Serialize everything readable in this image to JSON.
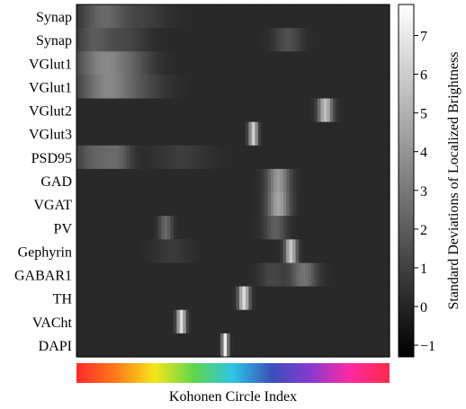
{
  "chart_data": {
    "type": "heatmap",
    "rows": [
      "Synap",
      "Synap",
      "VGlut1",
      "VGlut1",
      "VGlut2",
      "VGlut3",
      "PSD95",
      "GAD",
      "VGAT",
      "PV",
      "Gephyrin",
      "GABAR1",
      "TH",
      "VACht",
      "DAPI"
    ],
    "xlabel": "Kohonen Circle Index",
    "colorbar": {
      "label": "Standard Deviations of Localized Brightness",
      "range": [
        -1.3,
        7.8
      ],
      "ticks": [
        7,
        6,
        5,
        4,
        3,
        2,
        1,
        0,
        -1
      ],
      "tick_labels": [
        "7",
        "6",
        "5",
        "4",
        "3",
        "2",
        "1",
        "0",
        "−1"
      ],
      "colormap": "gray"
    },
    "n_columns": 100,
    "background_value": 0.15,
    "features": [
      {
        "row": 0,
        "center": 8,
        "width": 5,
        "value": 2.3
      },
      {
        "row": 0,
        "center": 20,
        "width": 6,
        "value": 1.0
      },
      {
        "row": 1,
        "center": 5,
        "width": 4,
        "value": 1.8
      },
      {
        "row": 1,
        "center": 15,
        "width": 5,
        "value": 1.2
      },
      {
        "row": 1,
        "center": 67,
        "width": 3,
        "value": 1.6
      },
      {
        "row": 2,
        "center": 8,
        "width": 6,
        "value": 3.4
      },
      {
        "row": 2,
        "center": 18,
        "width": 5,
        "value": 1.3
      },
      {
        "row": 3,
        "center": 9,
        "width": 6,
        "value": 3.3
      },
      {
        "row": 3,
        "center": 20,
        "width": 6,
        "value": 1.2
      },
      {
        "row": 4,
        "center": 79,
        "width": 1.6,
        "value": 5.5
      },
      {
        "row": 5,
        "center": 56,
        "width": 1.0,
        "value": 6.0
      },
      {
        "row": 6,
        "center": 6,
        "width": 5,
        "value": 2.2
      },
      {
        "row": 6,
        "center": 13,
        "width": 3,
        "value": 1.6
      },
      {
        "row": 6,
        "center": 33,
        "width": 6,
        "value": 0.9
      },
      {
        "row": 7,
        "center": 64,
        "width": 2.5,
        "value": 4.2
      },
      {
        "row": 8,
        "center": 64,
        "width": 2.5,
        "value": 4.6
      },
      {
        "row": 9,
        "center": 28,
        "width": 1.5,
        "value": 2.4
      },
      {
        "row": 9,
        "center": 63,
        "width": 2.5,
        "value": 2.1
      },
      {
        "row": 10,
        "center": 68,
        "width": 1.3,
        "value": 5.8
      },
      {
        "row": 10,
        "center": 30,
        "width": 4,
        "value": 0.8
      },
      {
        "row": 11,
        "center": 72,
        "width": 3,
        "value": 2.8
      },
      {
        "row": 11,
        "center": 62,
        "width": 3,
        "value": 1.2
      },
      {
        "row": 12,
        "center": 53,
        "width": 1.2,
        "value": 6.5
      },
      {
        "row": 13,
        "center": 33,
        "width": 1.0,
        "value": 6.6
      },
      {
        "row": 14,
        "center": 47,
        "width": 0.7,
        "value": 7.3
      }
    ],
    "index_colorbar": [
      "#ff2a2a",
      "#ff7a1a",
      "#f5e61a",
      "#5ed64a",
      "#2ec4e6",
      "#3a4fb8",
      "#8a3ad0",
      "#ff2aa0",
      "#ff2a4a"
    ]
  }
}
